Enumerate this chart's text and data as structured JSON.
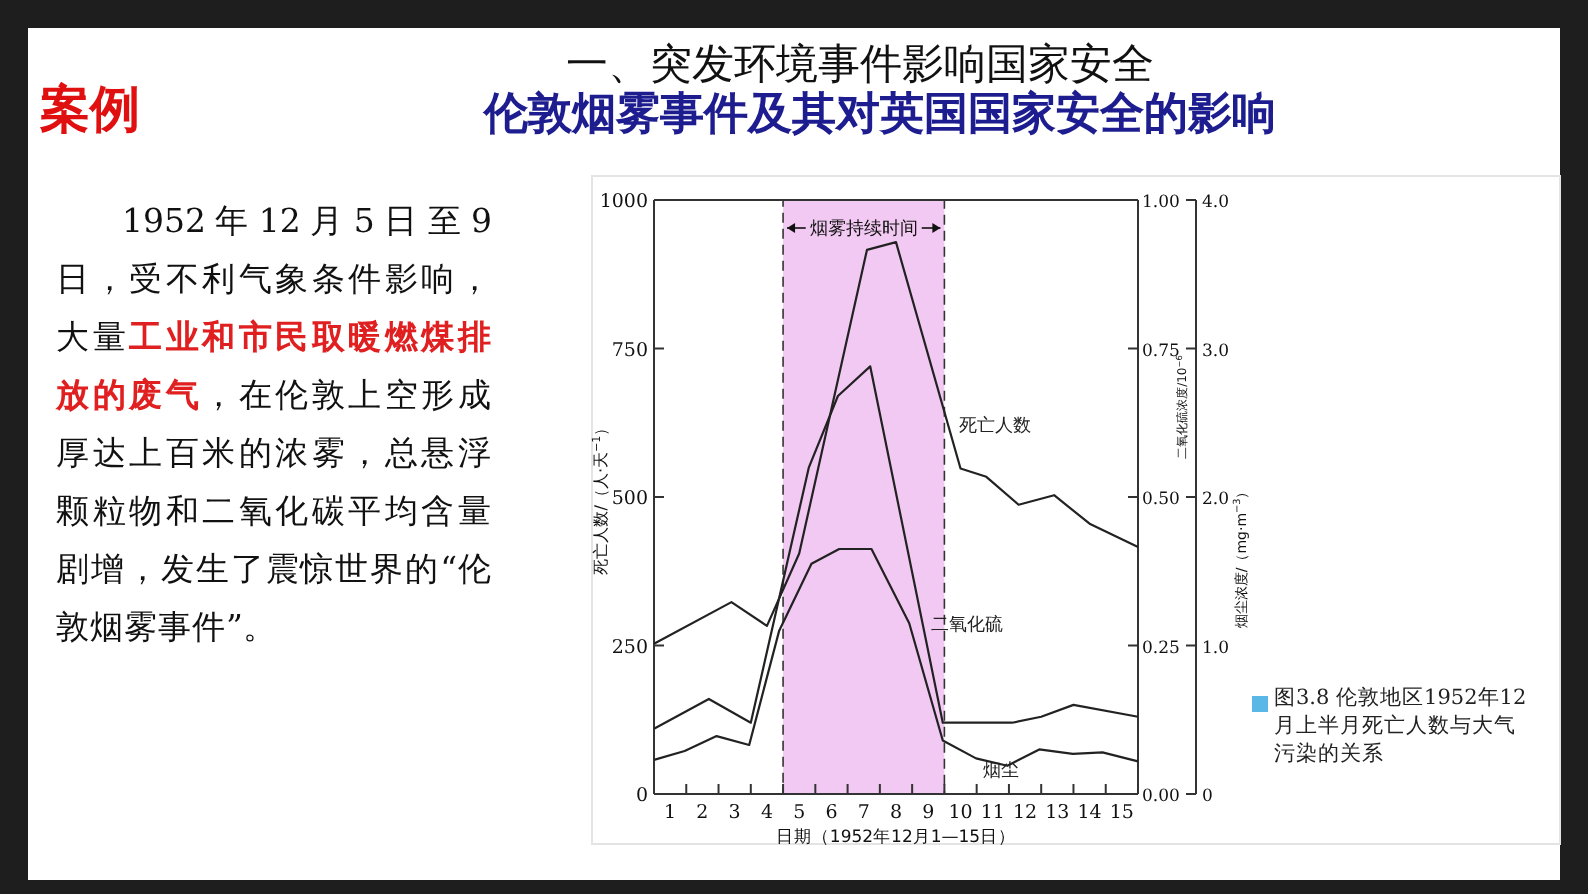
{
  "chart_data": {
    "type": "line",
    "title": "伦敦烟雾事件及其对英国国家安全的影响",
    "annotations": [
      "一、突发环境事件影响国家安全",
      "案例",
      "1952年12月5日至9日，受不利气象条件影响，大量",
      "工业和市民取暖燃煤排放的废气",
      "，在伦敦上空形成厚达上百米的浓雾，总悬浮颗粒物和二氧化碳平均含量剧增，发生了震惊世界的“伦敦烟雾事件”。",
      "图3.8 伦敦地区1952年12月上半月死亡人数与大气污染的关系"
    ],
    "xlabel": "日期（1952年12月1—15日）",
    "ylabel": "死亡人数/（人·天$^{−1}$）",
    "y2label": "二氧化硫浓度/10$^{−6}$",
    "y3label": "烟尘浓度/（mg·m$^{−3}$）",
    "xlim": [
      0.5,
      15.5
    ],
    "xticks": [
      1,
      2,
      3,
      4,
      5,
      6,
      7,
      8,
      9,
      10,
      11,
      12,
      13,
      14,
      15,
      {
        "value": 1.5,
        "label": null
      },
      {
        "value": 2.5,
        "label": null
      },
      {
        "value": 3.5,
        "label": null
      },
      {
        "value": 4.5,
        "label": null
      },
      {
        "value": 5.5,
        "label": null
      },
      {
        "value": 6.5,
        "label": null
      },
      {
        "value": 7.5,
        "label": null
      },
      {
        "value": 8.5,
        "label": null
      },
      {
        "value": 9.5,
        "label": null
      },
      {
        "value": 10.5,
        "label": null
      },
      {
        "value": 11.5,
        "label": null
      },
      {
        "value": 12.5,
        "label": null
      },
      {
        "value": 13.5,
        "label": null
      },
      {
        "value": 14.5,
        "label": null
      }
    ],
    "ylim": [
      0,
      1000
    ],
    "yticks": [
      0,
      250,
      500,
      750,
      1000
    ],
    "y2lim": [
      0,
      1
    ],
    "y2ticks": [
      {
        "value": 0,
        "label": "0.00"
      },
      {
        "value": 0.25,
        "label": "0.25"
      },
      {
        "value": 0.5,
        "label": "0.50"
      },
      {
        "value": 0.75,
        "label": "0.75"
      },
      {
        "value": 1,
        "label": "1.00"
      }
    ],
    "y3lim": [
      0,
      4
    ],
    "y3ticks": [
      0,
      {
        "value": 1,
        "label": "1.0"
      },
      {
        "value": 2,
        "label": "2.0"
      },
      {
        "value": 3,
        "label": "3.0"
      },
      {
        "value": 4,
        "label": "4.0"
      }
    ],
    "bands": [
      {
        "axis": "x",
        "from": 4.5,
        "to": 9.5,
        "label": "烟雾持续时间",
        "color": "#f2c9f2"
      }
    ],
    "marker": "none",
    "line_style": "solid",
    "series": [
      {
        "name": "死亡人数",
        "color": "#222222",
        "x": [
          0.5,
          2.9,
          4.0,
          5.0,
          7.1,
          8.0,
          10.0,
          10.8,
          11.8,
          12.9,
          14.0,
          15.5
        ],
        "values": [
          253,
          323,
          283,
          405,
          916,
          929,
          548,
          534,
          487,
          503,
          455,
          416
        ]
      },
      {
        "name": "二氧化硫",
        "color": "#222222",
        "axis": "y2",
        "x": [
          0.5,
          2.2,
          3.5,
          5.3,
          6.2,
          7.2,
          9.45,
          10.6,
          11.6,
          12.5,
          13.5,
          15.5
        ],
        "values": [
          0.11,
          0.16,
          0.12,
          0.55,
          0.67,
          0.72,
          0.12,
          0.12,
          0.12,
          0.13,
          0.15,
          0.13
        ]
      },
      {
        "name": "烟尘",
        "color": "#222222",
        "axis": "y3",
        "x": [
          0.5,
          1.45,
          2.44,
          3.45,
          4.38,
          5.38,
          6.24,
          7.24,
          8.41,
          9.45,
          10.48,
          11.45,
          12.44,
          13.48,
          14.4,
          15.5
        ],
        "values": [
          0.23,
          0.29,
          0.39,
          0.33,
          1.1,
          1.55,
          1.65,
          1.65,
          1.15,
          0.36,
          0.24,
          0.19,
          0.3,
          0.27,
          0.28,
          0.22
        ]
      }
    ]
  }
}
